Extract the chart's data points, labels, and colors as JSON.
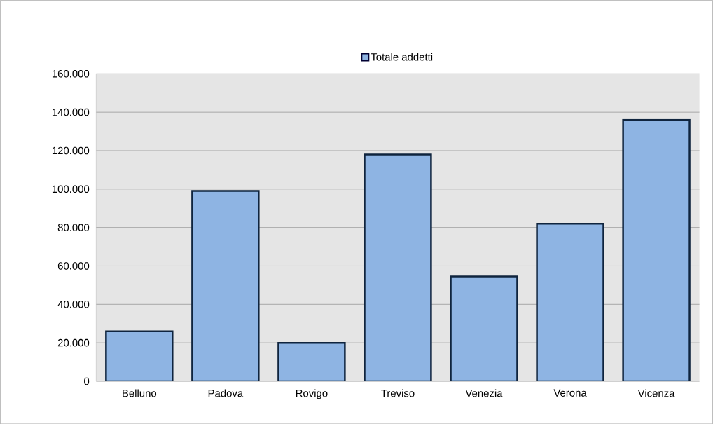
{
  "chart_data": {
    "type": "bar",
    "categories": [
      "Belluno",
      "Padova",
      "Rovigo",
      "Treviso",
      "Venezia",
      "Verona",
      "Vicenza"
    ],
    "series": [
      {
        "name": "Totale addetti",
        "color": "#8eb4e3",
        "values": [
          26000,
          99000,
          20000,
          118000,
          54500,
          82000,
          136000
        ]
      }
    ],
    "ylim": [
      0,
      160000
    ],
    "yticks": [
      0,
      {
        "value": 20000,
        "label": "20.000"
      },
      {
        "value": 40000,
        "label": "40.000"
      },
      {
        "value": 60000,
        "label": "60.000"
      },
      {
        "value": 80000,
        "label": "80.000"
      },
      {
        "value": 100000,
        "label": "100.000"
      },
      {
        "value": 120000,
        "label": "120.000"
      },
      {
        "value": 140000,
        "label": "140.000"
      },
      {
        "value": 160000,
        "label": "160.000"
      }
    ],
    "grid": "y",
    "legend": "top"
  }
}
